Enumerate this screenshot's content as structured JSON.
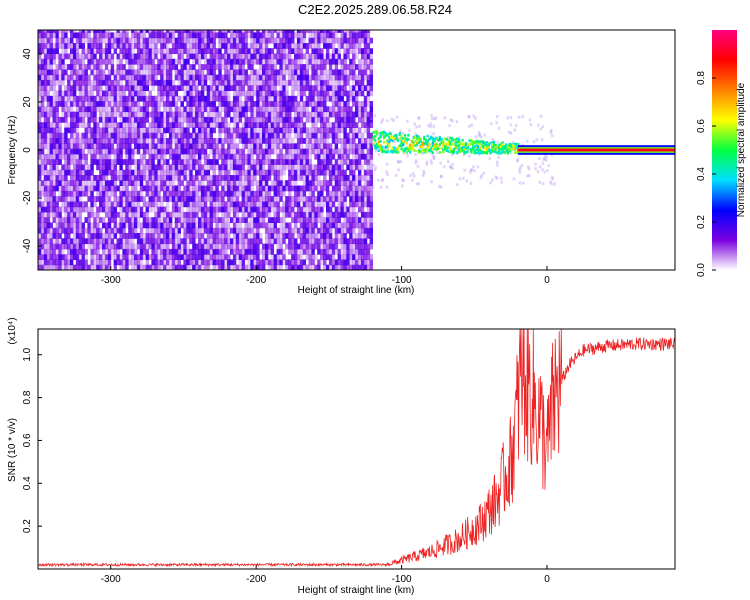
{
  "title": "C2E2.2025.289.06.58.R24",
  "chart_data": [
    {
      "type": "heatmap",
      "name": "spectrogram",
      "xlabel": "Height of straight line (km)",
      "ylabel": "Frequency (Hz)",
      "xlim": [
        -350,
        88
      ],
      "ylim": [
        -50,
        50
      ],
      "xticks": [
        -300,
        -200,
        -100,
        0
      ],
      "xtick_labels": [
        "-300",
        "-200",
        "-100",
        "0"
      ],
      "yticks": [
        40,
        20,
        0,
        -20,
        -40
      ],
      "ytick_labels": [
        "40",
        "20",
        "0",
        "-20",
        "-40"
      ],
      "colorbar": {
        "label": "Normalized spectral amplitude",
        "range": [
          0,
          1
        ],
        "ticks": [
          0.0,
          0.2,
          0.4,
          0.6,
          0.8
        ],
        "tick_labels": [
          "0.0",
          "0.2",
          "0.4",
          "0.6",
          "0.8"
        ],
        "colors": [
          "#ffffff",
          "#7a00e0",
          "#0000ff",
          "#00e0ff",
          "#00ff40",
          "#ffff00",
          "#ff8000",
          "#ff0000",
          "#ff0080"
        ]
      },
      "regions": [
        {
          "x_range": [
            -350,
            -120
          ],
          "description_value": "broadband noise",
          "amplitude": [
            0.05,
            0.2
          ]
        },
        {
          "x_range": [
            -120,
            -20
          ],
          "center_freq": 3,
          "amplitude": [
            0.2,
            0.6
          ]
        },
        {
          "x_range": [
            -20,
            88
          ],
          "center_freq": 0,
          "amplitude": [
            0.8,
            1.0
          ]
        }
      ]
    },
    {
      "type": "line",
      "name": "snr",
      "xlabel": "Height of straight line (km)",
      "ylabel": "SNR (10 * v/v)",
      "y_multiplier": "(x10⁴)",
      "xlim": [
        -350,
        88
      ],
      "ylim": [
        0,
        1.12
      ],
      "xticks": [
        -300,
        -200,
        -100,
        0
      ],
      "xtick_labels": [
        "-300",
        "-200",
        "-100",
        "0"
      ],
      "yticks": [
        0.2,
        0.4,
        0.6,
        0.8,
        1.0
      ],
      "ytick_labels": [
        "0.2",
        "0.4",
        "0.6",
        "0.8",
        "1.0"
      ],
      "color": "#ee2222",
      "series": [
        {
          "name": "SNR",
          "x": [
            -350,
            -110,
            -100,
            -80,
            -60,
            -45,
            -35,
            -25,
            -20,
            -18,
            -12,
            -5,
            0,
            5,
            15,
            25,
            40,
            60,
            88
          ],
          "y": [
            0.02,
            0.02,
            0.04,
            0.08,
            0.14,
            0.22,
            0.32,
            0.5,
            0.75,
            0.95,
            0.85,
            0.7,
            0.55,
            0.8,
            0.95,
            1.02,
            1.04,
            1.05,
            1.05
          ]
        }
      ]
    }
  ]
}
